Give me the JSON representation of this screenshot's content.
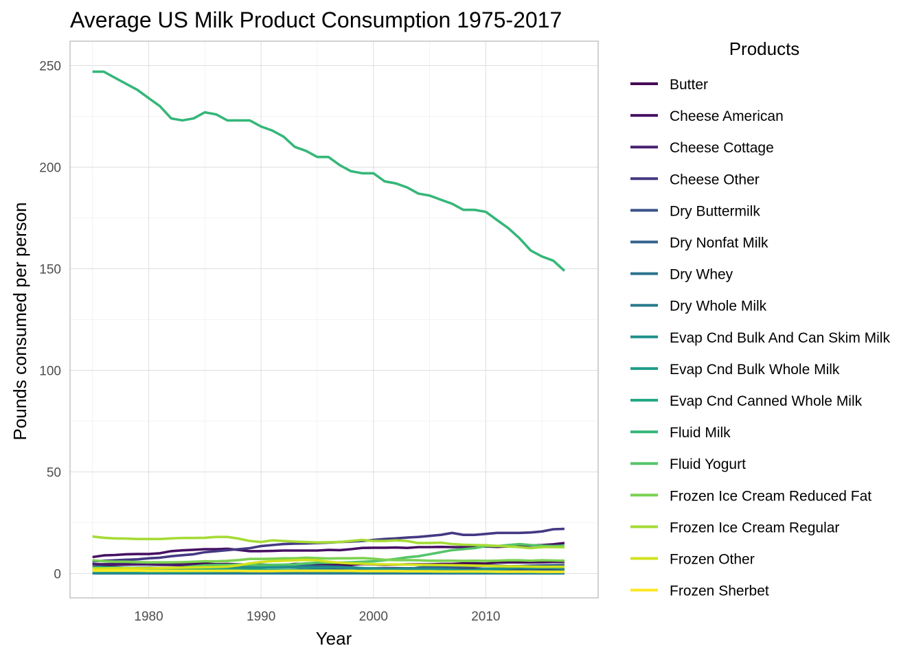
{
  "chart_data": {
    "type": "line",
    "title": "Average US Milk Product Consumption 1975-2017",
    "xlabel": "Year",
    "ylabel": "Pounds consumed per person",
    "xlim": [
      1973.0,
      2020.0
    ],
    "ylim": [
      -12,
      262
    ],
    "x_ticks": [
      1980,
      1990,
      2000,
      2010
    ],
    "y_ticks": [
      0,
      50,
      100,
      150,
      200,
      250
    ],
    "grid": true,
    "legend": {
      "title": "Products",
      "position": "right"
    },
    "x": [
      1975,
      1976,
      1977,
      1978,
      1979,
      1980,
      1981,
      1982,
      1983,
      1984,
      1985,
      1986,
      1987,
      1988,
      1989,
      1990,
      1991,
      1992,
      1993,
      1994,
      1995,
      1996,
      1997,
      1998,
      1999,
      2000,
      2001,
      2002,
      2003,
      2004,
      2005,
      2006,
      2007,
      2008,
      2009,
      2010,
      2011,
      2012,
      2013,
      2014,
      2015,
      2016,
      2017
    ],
    "series": [
      {
        "name": "Butter",
        "color": "#440154",
        "values": [
          4.7,
          4.3,
          4.3,
          4.4,
          4.5,
          4.5,
          4.3,
          4.4,
          4.9,
          4.9,
          4.9,
          4.6,
          4.7,
          4.5,
          4.4,
          4.4,
          4.2,
          4.2,
          4.7,
          4.8,
          4.5,
          4.3,
          4.2,
          4.3,
          4.7,
          4.5,
          4.3,
          4.4,
          4.5,
          4.5,
          4.5,
          4.7,
          4.7,
          5.0,
          5.0,
          4.9,
          5.4,
          5.5,
          5.5,
          5.5,
          5.6,
          5.7,
          5.7
        ]
      },
      {
        "name": "Cheese American",
        "color": "#471164",
        "values": [
          8.1,
          8.9,
          9.1,
          9.5,
          9.6,
          9.6,
          10.0,
          11.0,
          11.4,
          11.7,
          12.0,
          12.0,
          12.2,
          11.6,
          11.0,
          11.0,
          11.1,
          11.3,
          11.3,
          11.3,
          11.3,
          11.6,
          11.5,
          12.0,
          12.6,
          12.7,
          12.7,
          12.8,
          12.6,
          13.0,
          13.0,
          13.1,
          13.0,
          13.0,
          13.1,
          13.3,
          13.1,
          13.3,
          13.8,
          13.8,
          14.0,
          14.4,
          15.0
        ]
      },
      {
        "name": "Cheese Cottage",
        "color": "#481f70",
        "values": [
          4.6,
          4.6,
          4.7,
          4.7,
          4.6,
          4.5,
          4.3,
          4.2,
          4.1,
          4.0,
          4.1,
          4.1,
          3.9,
          3.8,
          3.6,
          3.4,
          3.3,
          3.2,
          3.1,
          2.9,
          2.7,
          2.6,
          2.6,
          2.7,
          2.6,
          2.6,
          2.6,
          2.6,
          2.6,
          2.6,
          2.6,
          2.6,
          2.4,
          2.3,
          2.3,
          2.3,
          2.2,
          2.2,
          2.1,
          2.1,
          2.1,
          2.0,
          2.0
        ]
      },
      {
        "name": "Cheese Other",
        "color": "#443983",
        "values": [
          6.0,
          6.2,
          6.5,
          6.8,
          7.0,
          7.5,
          7.8,
          8.5,
          9.0,
          9.5,
          10.5,
          11.0,
          11.5,
          12.0,
          12.5,
          13.5,
          14.0,
          14.5,
          14.7,
          14.8,
          15.0,
          15.2,
          15.5,
          15.7,
          16.0,
          16.5,
          17.0,
          17.3,
          17.7,
          18.0,
          18.5,
          19.0,
          20.0,
          19.0,
          19.0,
          19.5,
          20.0,
          20.0,
          20.0,
          20.2,
          20.7,
          21.8,
          22.0
        ]
      },
      {
        "name": "Dry Buttermilk",
        "color": "#3b528b",
        "values": [
          0.3,
          0.3,
          0.3,
          0.3,
          0.3,
          0.3,
          0.2,
          0.2,
          0.2,
          0.2,
          0.2,
          0.2,
          0.2,
          0.2,
          0.2,
          0.2,
          0.2,
          0.2,
          0.2,
          0.2,
          0.2,
          0.2,
          0.2,
          0.2,
          0.2,
          0.2,
          0.2,
          0.2,
          0.2,
          0.2,
          0.2,
          0.2,
          0.2,
          0.2,
          0.2,
          0.2,
          0.2,
          0.2,
          0.2,
          0.2,
          0.2,
          0.2,
          0.2
        ]
      },
      {
        "name": "Dry Nonfat Milk",
        "color": "#33638d",
        "values": [
          3.3,
          3.2,
          3.0,
          2.7,
          2.8,
          2.9,
          2.6,
          2.4,
          2.3,
          2.2,
          2.1,
          2.3,
          2.5,
          2.4,
          2.4,
          3.0,
          3.2,
          3.3,
          3.5,
          4.0,
          3.7,
          3.5,
          3.4,
          3.1,
          2.7,
          2.3,
          1.5,
          1.8,
          2.1,
          2.9,
          3.3,
          3.3,
          3.4,
          3.3,
          3.5,
          3.8,
          3.9,
          3.6,
          3.7,
          3.9,
          4.0,
          4.1,
          4.2
        ]
      },
      {
        "name": "Dry Whey",
        "color": "#2c728e",
        "values": [
          0.6,
          0.6,
          0.6,
          0.6,
          0.6,
          0.7,
          0.7,
          0.7,
          0.7,
          0.7,
          0.8,
          0.8,
          0.9,
          0.9,
          1.0,
          1.0,
          1.1,
          1.1,
          1.2,
          1.2,
          1.3,
          1.3,
          1.2,
          1.1,
          1.1,
          1.0,
          1.0,
          1.0,
          1.0,
          1.0,
          1.0,
          1.0,
          1.1,
          1.1,
          1.0,
          1.0,
          1.0,
          1.0,
          1.0,
          1.0,
          1.0,
          1.0,
          1.0
        ]
      },
      {
        "name": "Dry Whole Milk",
        "color": "#287d8e",
        "values": [
          0.1,
          0.1,
          0.1,
          0.1,
          0.1,
          0.1,
          0.1,
          0.1,
          0.1,
          0.1,
          0.1,
          0.1,
          0.1,
          0.1,
          0.1,
          0.1,
          0.1,
          0.1,
          0.1,
          0.1,
          0.1,
          0.1,
          0.1,
          0.1,
          0.1,
          0.1,
          0.1,
          0.1,
          0.1,
          0.1,
          0.1,
          0.1,
          0.1,
          0.1,
          0.1,
          0.1,
          0.1,
          0.1,
          0.1,
          0.1,
          0.1,
          0.1,
          0.1
        ]
      },
      {
        "name": "Evap Cnd Bulk And Can Skim Milk",
        "color": "#21908c",
        "values": [
          1.5,
          1.6,
          1.5,
          1.8,
          1.9,
          2.0,
          2.2,
          2.2,
          2.3,
          2.5,
          2.7,
          2.9,
          3.2,
          3.3,
          3.0,
          3.2,
          3.1,
          3.1,
          3.2,
          3.0,
          2.9,
          3.0,
          2.9,
          2.8,
          2.7,
          2.6,
          2.4,
          2.4,
          2.5,
          2.3,
          2.2,
          2.1,
          2.0,
          1.8,
          1.9,
          2.4,
          2.4,
          2.5,
          2.7,
          2.6,
          2.7,
          2.7,
          2.5
        ]
      },
      {
        "name": "Evap Cnd Bulk Whole Milk",
        "color": "#1e9c89",
        "values": [
          0.8,
          0.7,
          0.7,
          0.7,
          0.7,
          0.6,
          0.6,
          0.7,
          0.7,
          0.8,
          0.9,
          1.0,
          1.0,
          1.1,
          1.1,
          1.1,
          1.2,
          1.2,
          1.3,
          1.3,
          1.2,
          1.2,
          1.1,
          1.1,
          1.0,
          1.0,
          1.0,
          0.9,
          0.9,
          0.9,
          0.8,
          0.8,
          0.7,
          0.7,
          0.7,
          0.7,
          0.7,
          0.7,
          0.6,
          0.6,
          0.6,
          0.6,
          0.6
        ]
      },
      {
        "name": "Evap Cnd Canned Whole Milk",
        "color": "#22a884",
        "values": [
          3.0,
          3.0,
          2.9,
          2.8,
          2.7,
          2.6,
          2.5,
          2.5,
          2.4,
          2.3,
          2.2,
          2.1,
          2.0,
          2.0,
          1.9,
          1.9,
          1.8,
          1.8,
          1.8,
          1.7,
          1.6,
          1.6,
          1.5,
          1.5,
          1.4,
          1.4,
          1.4,
          1.4,
          1.3,
          1.3,
          1.3,
          1.3,
          1.2,
          1.2,
          1.2,
          1.2,
          1.2,
          1.1,
          1.1,
          1.1,
          1.1,
          1.1,
          1.1
        ]
      },
      {
        "name": "Fluid Milk",
        "color": "#35b779",
        "values": [
          247,
          247,
          244,
          241,
          238,
          234,
          230,
          224,
          223,
          224,
          227,
          226,
          223,
          223,
          223,
          220,
          218,
          215,
          210,
          208,
          205,
          205,
          201,
          198,
          197,
          197,
          193,
          192,
          190,
          187,
          186,
          184,
          182,
          179,
          179,
          178,
          174,
          170,
          165,
          159,
          156,
          154,
          149
        ]
      },
      {
        "name": "Fluid Yogurt",
        "color": "#54c568",
        "values": [
          2.0,
          2.1,
          2.2,
          2.3,
          2.4,
          2.5,
          2.5,
          2.7,
          3.0,
          3.5,
          4.0,
          4.2,
          4.3,
          4.4,
          4.3,
          4.2,
          4.3,
          4.4,
          4.5,
          5.0,
          5.3,
          5.3,
          5.4,
          5.5,
          5.8,
          6.0,
          6.5,
          7.2,
          8.0,
          8.5,
          9.5,
          10.5,
          11.5,
          12.0,
          12.5,
          13.5,
          13.5,
          14.0,
          14.5,
          14.0,
          13.7,
          13.5,
          13.7
        ]
      },
      {
        "name": "Frozen Ice Cream Reduced Fat",
        "color": "#7ad151",
        "values": [
          6.5,
          6.0,
          5.8,
          5.8,
          5.6,
          5.5,
          5.5,
          5.5,
          5.6,
          5.8,
          6.0,
          6.0,
          6.2,
          6.6,
          7.2,
          7.2,
          7.3,
          7.5,
          7.5,
          7.8,
          7.6,
          7.4,
          7.5,
          7.5,
          7.6,
          7.3,
          6.8,
          6.6,
          6.6,
          6.5,
          6.3,
          6.3,
          6.3,
          6.2,
          6.3,
          6.2,
          6.3,
          6.5,
          6.5,
          6.3,
          6.5,
          6.4,
          6.3
        ]
      },
      {
        "name": "Frozen Ice Cream Regular",
        "color": "#a5db36",
        "values": [
          18.2,
          17.6,
          17.3,
          17.2,
          17.0,
          17.0,
          17.0,
          17.3,
          17.5,
          17.5,
          17.6,
          18.0,
          18.0,
          17.2,
          16.0,
          15.5,
          16.3,
          16.0,
          15.7,
          15.5,
          15.3,
          15.4,
          15.5,
          16.0,
          16.5,
          16.0,
          16.0,
          16.3,
          16.0,
          15.0,
          15.0,
          15.2,
          14.5,
          14.2,
          14.0,
          13.9,
          13.6,
          13.3,
          13.0,
          12.5,
          13.0,
          13.0,
          12.9
        ]
      },
      {
        "name": "Frozen Other",
        "color": "#d2e21b",
        "values": [
          2.5,
          2.5,
          2.6,
          2.6,
          2.6,
          2.7,
          2.7,
          2.8,
          2.9,
          3.0,
          3.1,
          3.2,
          3.4,
          4.0,
          5.0,
          5.7,
          6.1,
          6.3,
          6.5,
          6.7,
          6.5,
          5.8,
          5.3,
          5.0,
          4.9,
          4.6,
          4.5,
          4.5,
          4.4,
          4.3,
          4.2,
          4.2,
          4.1,
          4.0,
          3.9,
          3.8,
          3.6,
          3.5,
          3.5,
          3.4,
          3.3,
          3.3,
          3.3
        ]
      },
      {
        "name": "Frozen Sherbet",
        "color": "#fde725",
        "values": [
          1.4,
          1.4,
          1.4,
          1.4,
          1.4,
          1.3,
          1.3,
          1.3,
          1.3,
          1.3,
          1.3,
          1.3,
          1.3,
          1.3,
          1.2,
          1.2,
          1.2,
          1.3,
          1.3,
          1.3,
          1.3,
          1.3,
          1.3,
          1.3,
          1.2,
          1.2,
          1.2,
          1.2,
          1.1,
          1.1,
          1.1,
          1.0,
          1.0,
          1.0,
          1.0,
          1.0,
          0.9,
          0.9,
          0.9,
          0.9,
          0.8,
          0.8,
          0.8
        ]
      }
    ]
  }
}
